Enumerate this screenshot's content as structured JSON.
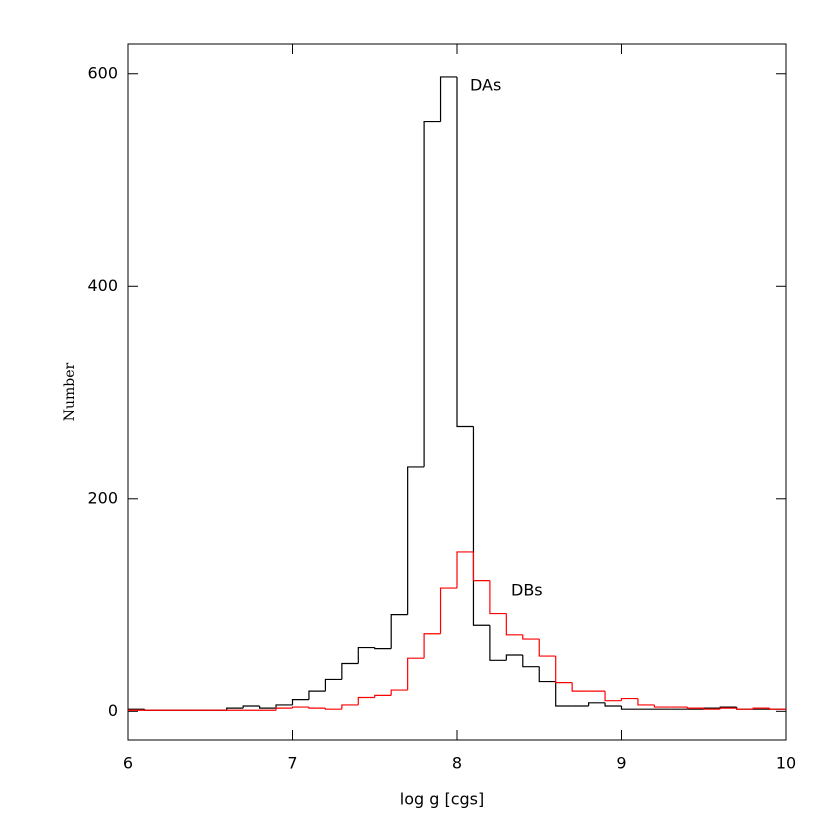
{
  "chart_data": {
    "type": "histogram",
    "xlabel": "log g [cgs]",
    "ylabel": "Number",
    "bins": [
      6.0,
      6.1,
      6.2,
      6.3,
      6.4,
      6.5,
      6.6,
      6.7,
      6.8,
      6.9,
      7.0,
      7.1,
      7.2,
      7.3,
      7.4,
      7.5,
      7.6,
      7.7,
      7.8,
      7.9,
      8.0,
      8.1,
      8.2,
      8.3,
      8.4,
      8.5,
      8.6,
      8.7,
      8.8,
      8.9,
      9.0,
      9.1,
      9.2,
      9.3,
      9.4,
      9.5,
      9.6,
      9.7,
      9.8,
      9.9,
      10.0
    ],
    "series": [
      {
        "name": "DAs",
        "color": "#000000",
        "values": [
          2,
          1,
          1,
          1,
          1,
          1,
          3,
          5,
          3,
          6,
          11,
          19,
          30,
          45,
          60,
          59,
          91,
          230,
          555,
          597,
          268,
          81,
          48,
          53,
          42,
          28,
          5,
          5,
          8,
          5,
          2,
          2,
          2,
          2,
          2,
          3,
          4,
          2,
          2,
          2
        ]
      },
      {
        "name": "DBs",
        "color": "#ff0000",
        "values": [
          1,
          1,
          1,
          1,
          1,
          1,
          1,
          1,
          1,
          3,
          4,
          3,
          2,
          6,
          13,
          15,
          20,
          50,
          73,
          116,
          150,
          123,
          92,
          72,
          68,
          52,
          27,
          19,
          19,
          10,
          12,
          6,
          4,
          4,
          3,
          2,
          3,
          2,
          3,
          2
        ]
      }
    ],
    "xlim": [
      6,
      10
    ],
    "ylim": [
      -27,
      628
    ],
    "xticks": [
      6,
      7,
      8,
      9,
      10
    ],
    "yticks": [
      0,
      200,
      400,
      600
    ]
  }
}
